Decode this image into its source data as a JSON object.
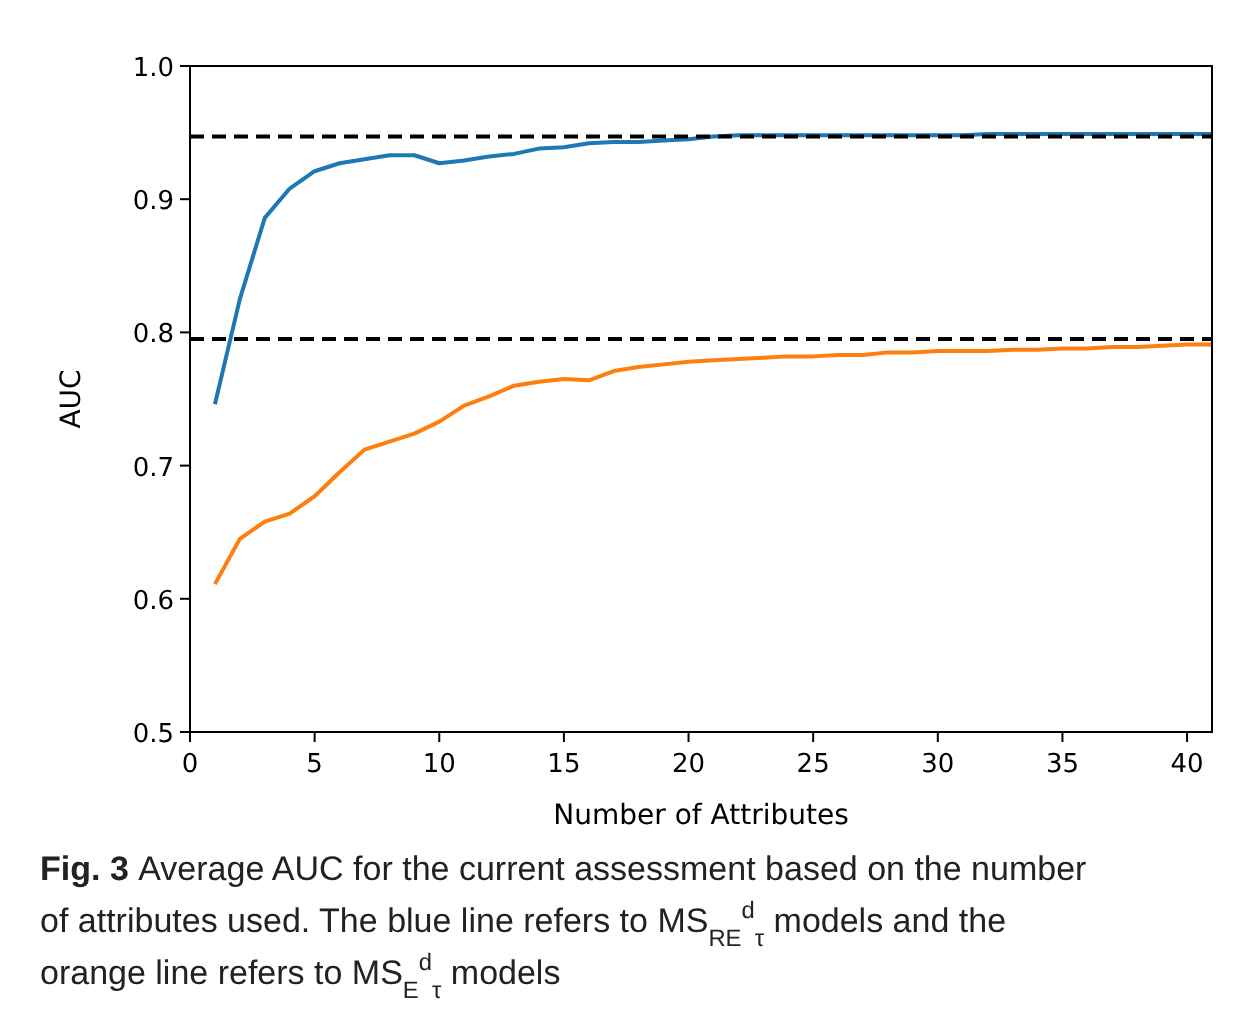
{
  "chart_data": {
    "type": "line",
    "title": "Fig. 3",
    "xlabel": "Number of Attributes",
    "ylabel": "AUC",
    "annotations": [
      "Average AUC for the current assessment based on the number of attributes used. The blue line refers to MS$_{RE}$$^{d}$$_{τ}$ models and the orange line refers to MS$_{E}$$^{d}$$_{τ}$ models"
    ],
    "x": [
      1,
      2,
      3,
      4,
      5,
      6,
      7,
      8,
      9,
      10,
      11,
      12,
      13,
      14,
      15,
      16,
      17,
      18,
      19,
      20,
      21,
      22,
      23,
      24,
      25,
      26,
      27,
      28,
      29,
      30,
      31,
      32,
      33,
      34,
      35,
      36,
      37,
      38,
      39,
      40,
      41
    ],
    "series": [
      {
        "color": "#1f77b4",
        "values": [
          0.746,
          0.825,
          0.886,
          0.908,
          0.921,
          0.927,
          0.93,
          0.933,
          0.933,
          0.927,
          0.929,
          0.932,
          0.934,
          0.938,
          0.939,
          0.942,
          0.943,
          0.943,
          0.944,
          0.945,
          0.947,
          0.948,
          0.948,
          0.948,
          0.948,
          0.948,
          0.948,
          0.948,
          0.948,
          0.948,
          0.948,
          0.949,
          0.949,
          0.949,
          0.949,
          0.949,
          0.949,
          0.949,
          0.949,
          0.949,
          0.949
        ]
      },
      {
        "color": "#ff7f0e",
        "values": [
          0.611,
          0.645,
          0.658,
          0.664,
          0.677,
          0.695,
          0.712,
          0.718,
          0.724,
          0.733,
          0.745,
          0.752,
          0.76,
          0.763,
          0.765,
          0.764,
          0.771,
          0.774,
          0.776,
          0.778,
          0.779,
          0.78,
          0.781,
          0.782,
          0.782,
          0.783,
          0.783,
          0.785,
          0.785,
          0.786,
          0.786,
          0.786,
          0.787,
          0.787,
          0.788,
          0.788,
          0.789,
          0.789,
          0.79,
          0.791,
          0.791
        ]
      }
    ],
    "ref_lines": [
      {
        "axis": "y",
        "value": 0.947,
        "color": "#000000",
        "line_style": "dashed"
      },
      {
        "axis": "y",
        "value": 0.795,
        "color": "#000000",
        "line_style": "dashed"
      }
    ],
    "xlim": [
      0,
      41
    ],
    "xticks": [
      0,
      5,
      10,
      15,
      20,
      25,
      30,
      35,
      40
    ],
    "ylim": [
      0.5,
      1.0
    ],
    "yticks": [
      {
        "value": 0.5,
        "label": "0.5"
      },
      {
        "value": 0.6,
        "label": "0.6"
      },
      {
        "value": 0.7,
        "label": "0.7"
      },
      {
        "value": 0.8,
        "label": "0.8"
      },
      {
        "value": 0.9,
        "label": "0.9"
      },
      {
        "value": 1.0,
        "label": "1.0"
      }
    ],
    "grid": false,
    "marker": "none",
    "line_style": "solid"
  }
}
